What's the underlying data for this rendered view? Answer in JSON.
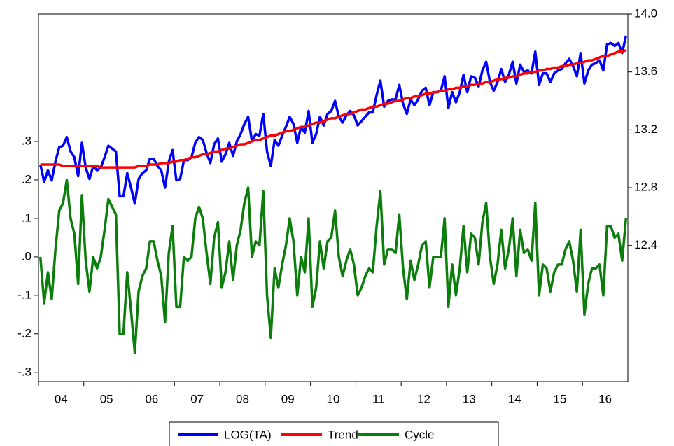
{
  "chart_data": {
    "type": "line",
    "categories": [
      null,
      null,
      null,
      null,
      null,
      null,
      "04",
      null,
      null,
      null,
      null,
      null,
      null,
      null,
      null,
      null,
      null,
      null,
      "05",
      null,
      null,
      null,
      null,
      null,
      null,
      null,
      null,
      null,
      null,
      null,
      "06",
      null,
      null,
      null,
      null,
      null,
      null,
      null,
      null,
      null,
      null,
      null,
      "07",
      null,
      null,
      null,
      null,
      null,
      null,
      null,
      null,
      null,
      null,
      null,
      "08",
      null,
      null,
      null,
      null,
      null,
      null,
      null,
      null,
      null,
      null,
      null,
      "09",
      null,
      null,
      null,
      null,
      null,
      null,
      null,
      null,
      null,
      null,
      null,
      "10",
      null,
      null,
      null,
      null,
      null,
      null,
      null,
      null,
      null,
      null,
      null,
      "11",
      null,
      null,
      null,
      null,
      null,
      null,
      null,
      null,
      null,
      null,
      null,
      "12",
      null,
      null,
      null,
      null,
      null,
      null,
      null,
      null,
      null,
      null,
      null,
      "13",
      null,
      null,
      null,
      null,
      null,
      null,
      null,
      null,
      null,
      null,
      null,
      "14",
      null,
      null,
      null,
      null,
      null,
      null,
      null,
      null,
      null,
      null,
      null,
      "15",
      null,
      null,
      null,
      null,
      null,
      null,
      null,
      null,
      null,
      null,
      null,
      "16",
      null,
      null,
      null,
      null,
      null
    ],
    "ylim": [
      -0.324,
      0.631
    ],
    "yticks": [
      {
        "value": -0.3,
        "label": "-.3"
      },
      {
        "value": -0.2,
        "label": "-.2"
      },
      {
        "value": -0.1,
        "label": "-.1"
      },
      {
        "value": 0,
        "label": ".0"
      },
      {
        "value": 0.1,
        "label": ".1"
      },
      {
        "value": 0.2,
        "label": ".2"
      },
      {
        "value": 0.3,
        "label": ".3"
      }
    ],
    "y2lim": [
      11.46,
      14.0
    ],
    "y2ticks": [
      {
        "value": 12.4,
        "label": "12.4"
      },
      {
        "value": 12.8,
        "label": "12.8"
      },
      {
        "value": 13.2,
        "label": "13.2"
      },
      {
        "value": 13.6,
        "label": "13.6"
      },
      {
        "value": 14.0,
        "label": "14.0"
      }
    ],
    "series": [
      {
        "name": "LOG(TA)",
        "color": "#0000ff",
        "axis": "y2",
        "values": [
          12.96,
          12.84,
          12.92,
          12.85,
          12.98,
          13.08,
          13.09,
          13.15,
          13.05,
          13.01,
          12.88,
          13.11,
          12.94,
          12.86,
          12.95,
          12.92,
          12.94,
          13.01,
          13.09,
          13.07,
          13.05,
          12.74,
          12.74,
          12.9,
          12.8,
          12.69,
          12.86,
          12.9,
          12.92,
          13.0,
          13.0,
          12.95,
          12.92,
          12.8,
          12.98,
          13.06,
          12.85,
          12.86,
          12.99,
          12.99,
          13.01,
          13.11,
          13.15,
          13.13,
          13.04,
          12.97,
          13.1,
          13.14,
          12.98,
          13.03,
          13.11,
          13.02,
          13.12,
          13.17,
          13.24,
          13.29,
          13.12,
          13.17,
          13.16,
          13.31,
          13.05,
          12.95,
          13.13,
          13.09,
          13.16,
          13.22,
          13.29,
          13.24,
          13.11,
          13.22,
          13.18,
          13.33,
          13.11,
          13.17,
          13.29,
          13.23,
          13.31,
          13.33,
          13.4,
          13.29,
          13.25,
          13.3,
          13.33,
          13.3,
          13.23,
          13.26,
          13.29,
          13.32,
          13.32,
          13.44,
          13.54,
          13.36,
          13.4,
          13.41,
          13.41,
          13.51,
          13.38,
          13.31,
          13.41,
          13.37,
          13.41,
          13.47,
          13.49,
          13.37,
          13.46,
          13.46,
          13.47,
          13.57,
          13.35,
          13.46,
          13.39,
          13.46,
          13.58,
          13.46,
          13.57,
          13.56,
          13.5,
          13.61,
          13.67,
          13.53,
          13.47,
          13.53,
          13.62,
          13.53,
          13.58,
          13.67,
          13.52,
          13.65,
          13.6,
          13.61,
          13.59,
          13.74,
          13.51,
          13.59,
          13.59,
          13.53,
          13.59,
          13.61,
          13.62,
          13.66,
          13.69,
          13.64,
          13.57,
          13.73,
          13.52,
          13.61,
          13.65,
          13.66,
          13.68,
          13.61,
          13.79,
          13.8,
          13.78,
          13.8,
          13.73,
          13.85
        ]
      },
      {
        "name": "Trend",
        "color": "#ff0000",
        "axis": "y2",
        "values": [
          12.96,
          12.96,
          12.96,
          12.96,
          12.96,
          12.96,
          12.95,
          12.95,
          12.95,
          12.95,
          12.95,
          12.95,
          12.95,
          12.95,
          12.95,
          12.95,
          12.94,
          12.94,
          12.94,
          12.94,
          12.94,
          12.94,
          12.94,
          12.94,
          12.94,
          12.94,
          12.95,
          12.95,
          12.95,
          12.96,
          12.96,
          12.96,
          12.97,
          12.97,
          12.97,
          12.98,
          12.98,
          12.99,
          12.99,
          13.0,
          13.01,
          13.01,
          13.02,
          13.03,
          13.03,
          13.04,
          13.05,
          13.05,
          13.06,
          13.07,
          13.07,
          13.08,
          13.09,
          13.1,
          13.1,
          13.11,
          13.12,
          13.13,
          13.13,
          13.14,
          13.15,
          13.16,
          13.16,
          13.17,
          13.18,
          13.19,
          13.19,
          13.2,
          13.21,
          13.22,
          13.22,
          13.23,
          13.24,
          13.25,
          13.25,
          13.26,
          13.27,
          13.28,
          13.28,
          13.29,
          13.3,
          13.31,
          13.31,
          13.32,
          13.33,
          13.34,
          13.34,
          13.35,
          13.36,
          13.36,
          13.37,
          13.38,
          13.38,
          13.39,
          13.4,
          13.4,
          13.41,
          13.42,
          13.42,
          13.43,
          13.43,
          13.44,
          13.45,
          13.45,
          13.46,
          13.46,
          13.47,
          13.47,
          13.48,
          13.48,
          13.49,
          13.49,
          13.5,
          13.5,
          13.51,
          13.51,
          13.52,
          13.52,
          13.53,
          13.53,
          13.54,
          13.55,
          13.55,
          13.56,
          13.56,
          13.57,
          13.57,
          13.58,
          13.59,
          13.59,
          13.6,
          13.6,
          13.61,
          13.61,
          13.62,
          13.62,
          13.63,
          13.63,
          13.64,
          13.64,
          13.65,
          13.65,
          13.66,
          13.66,
          13.67,
          13.68,
          13.68,
          13.69,
          13.7,
          13.71,
          13.71,
          13.72,
          13.73,
          13.74,
          13.74,
          13.75
        ]
      },
      {
        "name": "Cycle",
        "color": "#0a7d0a",
        "axis": "y",
        "values": [
          0.0,
          -0.12,
          -0.04,
          -0.11,
          0.02,
          0.12,
          0.14,
          0.2,
          0.1,
          0.06,
          -0.07,
          0.16,
          -0.01,
          -0.09,
          0.0,
          -0.03,
          0.0,
          0.07,
          0.15,
          0.13,
          0.11,
          -0.2,
          -0.2,
          -0.04,
          -0.14,
          -0.25,
          -0.09,
          -0.05,
          -0.03,
          0.04,
          0.04,
          -0.01,
          -0.05,
          -0.17,
          0.01,
          0.08,
          -0.13,
          -0.13,
          0.0,
          -0.01,
          0.0,
          0.1,
          0.13,
          0.1,
          0.01,
          -0.07,
          0.05,
          0.09,
          -0.08,
          -0.04,
          0.04,
          -0.06,
          0.03,
          0.07,
          0.14,
          0.18,
          0.0,
          0.04,
          0.03,
          0.17,
          -0.1,
          -0.21,
          -0.03,
          -0.08,
          -0.02,
          0.03,
          0.1,
          0.04,
          -0.1,
          0.0,
          -0.04,
          0.1,
          -0.13,
          -0.08,
          0.04,
          -0.03,
          0.04,
          0.05,
          0.12,
          0.0,
          -0.05,
          -0.01,
          0.02,
          -0.02,
          -0.1,
          -0.08,
          -0.05,
          -0.03,
          -0.04,
          0.08,
          0.17,
          -0.02,
          0.02,
          0.02,
          0.01,
          0.11,
          -0.03,
          -0.11,
          -0.01,
          -0.06,
          -0.02,
          0.03,
          0.04,
          -0.08,
          0.0,
          0.0,
          0.0,
          0.1,
          -0.13,
          -0.02,
          -0.1,
          -0.03,
          0.08,
          -0.04,
          0.06,
          0.05,
          -0.02,
          0.09,
          0.14,
          0.0,
          -0.07,
          -0.02,
          0.07,
          -0.03,
          0.02,
          0.1,
          -0.05,
          0.07,
          0.01,
          0.02,
          -0.01,
          0.14,
          -0.1,
          -0.02,
          -0.03,
          -0.09,
          -0.04,
          -0.02,
          -0.02,
          0.02,
          0.04,
          -0.01,
          -0.09,
          0.07,
          -0.15,
          -0.07,
          -0.03,
          -0.03,
          -0.02,
          -0.1,
          0.08,
          0.08,
          0.05,
          0.06,
          -0.01,
          0.1
        ]
      }
    ]
  }
}
